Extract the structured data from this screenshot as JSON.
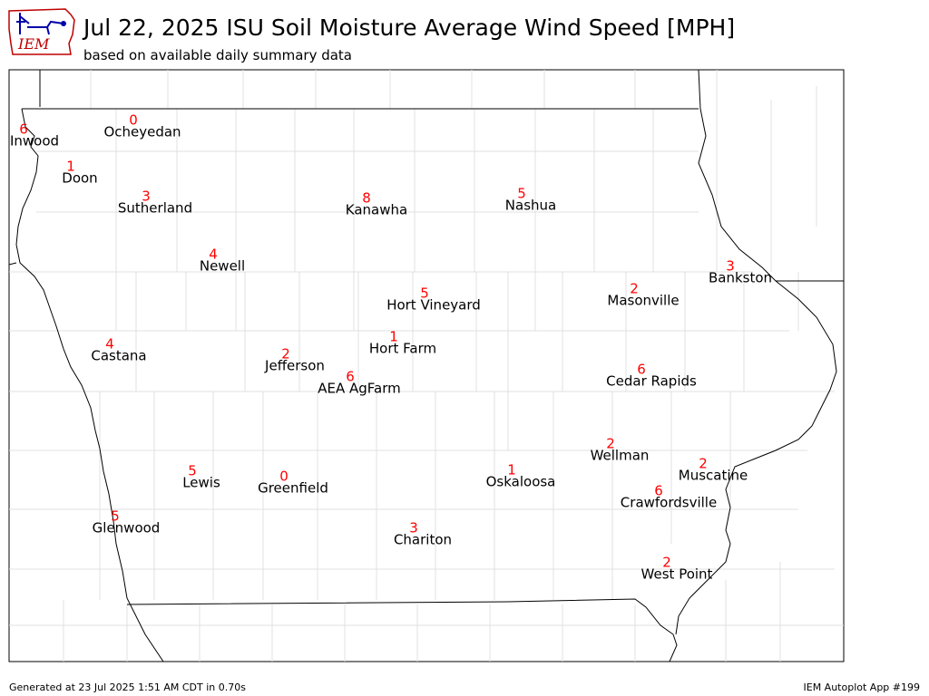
{
  "header": {
    "logo_text": "IEM",
    "title": "Jul 22, 2025 ISU Soil Moisture Average Wind Speed [MPH]",
    "subtitle": "based on available daily summary data"
  },
  "footer": {
    "generated": "Generated at 23 Jul 2025 1:51 AM CDT in 0.70s",
    "app": "IEM Autoplot App #199"
  },
  "colors": {
    "value": "#ff0000",
    "label": "#000000",
    "state_border": "#000000",
    "county_border": "#dddddd"
  },
  "stations": [
    {
      "name": "Inwood",
      "value": "6"
    },
    {
      "name": "Ocheyedan",
      "value": "0"
    },
    {
      "name": "Doon",
      "value": "1"
    },
    {
      "name": "Sutherland",
      "value": "3"
    },
    {
      "name": "Kanawha",
      "value": "8"
    },
    {
      "name": "Nashua",
      "value": "5"
    },
    {
      "name": "Newell",
      "value": "4"
    },
    {
      "name": "Bankston",
      "value": "3"
    },
    {
      "name": "Hort Vineyard",
      "value": "5"
    },
    {
      "name": "Masonville",
      "value": "2"
    },
    {
      "name": "Castana",
      "value": "4"
    },
    {
      "name": "Hort Farm",
      "value": "1"
    },
    {
      "name": "Jefferson",
      "value": "2"
    },
    {
      "name": "AEA AgFarm",
      "value": "6"
    },
    {
      "name": "Cedar Rapids",
      "value": "6"
    },
    {
      "name": "Wellman",
      "value": "2"
    },
    {
      "name": "Muscatine",
      "value": "2"
    },
    {
      "name": "Lewis",
      "value": "5"
    },
    {
      "name": "Greenfield",
      "value": "0"
    },
    {
      "name": "Oskaloosa",
      "value": "1"
    },
    {
      "name": "Crawfordsville",
      "value": "6"
    },
    {
      "name": "Glenwood",
      "value": "5"
    },
    {
      "name": "Chariton",
      "value": "3"
    },
    {
      "name": "West Point",
      "value": "2"
    }
  ]
}
